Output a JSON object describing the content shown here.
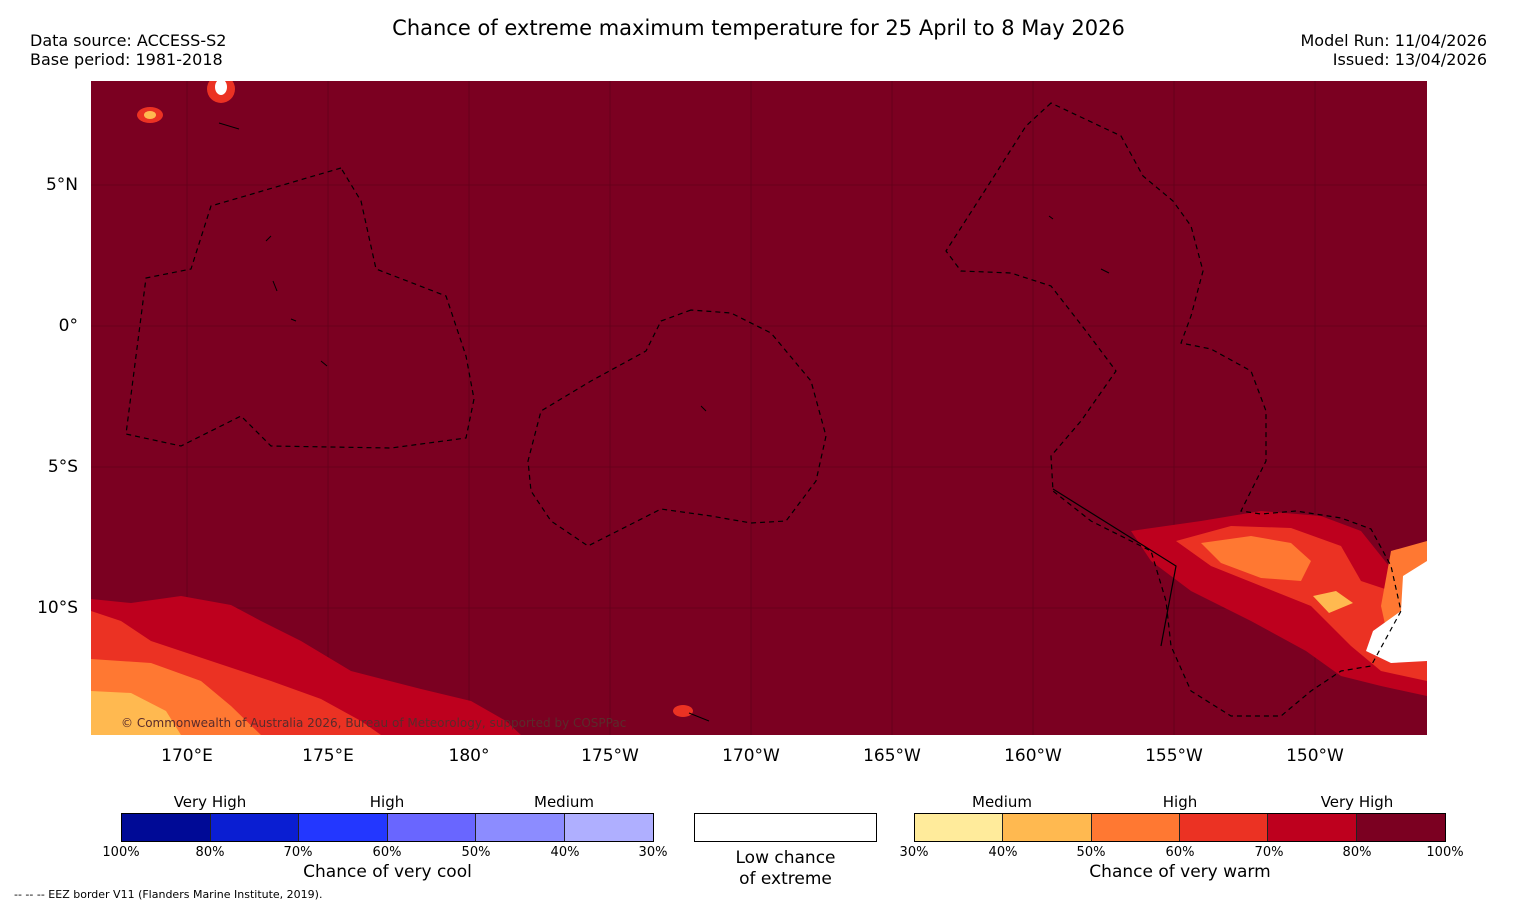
{
  "header": {
    "title": "Chance of extreme maximum temperature for 25 April to 8 May 2026",
    "data_source": "Data source: ACCESS-S2",
    "base_period": "Base period: 1981-2018",
    "model_run": "Model Run: 11/04/2026",
    "issued": "Issued: 13/04/2026"
  },
  "map": {
    "lat_labels": [
      "5°N",
      "0°",
      "5°S",
      "10°S"
    ],
    "lon_labels": [
      "170°E",
      "175°E",
      "180°",
      "175°W",
      "170°W",
      "165°W",
      "160°W",
      "155°W",
      "150°W"
    ],
    "copyright": "© Commonwealth of Australia 2026, Bureau of Meteorology, supported by COSPPac",
    "background_color": "#7b0021"
  },
  "legend": {
    "cool": {
      "categories": [
        "Very High",
        "High",
        "Medium"
      ],
      "ticks": [
        "100%",
        "80%",
        "70%",
        "60%",
        "50%",
        "40%",
        "30%"
      ],
      "colors": [
        "#000a96",
        "#0a1ed2",
        "#2337ff",
        "#6966ff",
        "#8c8cff",
        "#afafff"
      ],
      "caption": "Chance of very cool"
    },
    "neutral": {
      "caption_line1": "Low chance",
      "caption_line2": "of extreme"
    },
    "warm": {
      "categories": [
        "Medium",
        "High",
        "Very High"
      ],
      "ticks": [
        "30%",
        "40%",
        "50%",
        "60%",
        "70%",
        "80%",
        "100%"
      ],
      "colors": [
        "#ffeb9b",
        "#ffb950",
        "#ff7832",
        "#eb3223",
        "#be001e",
        "#7b0021"
      ],
      "caption": "Chance of very warm"
    }
  },
  "footer": {
    "eez_note": "--  --  -- EEZ border V11 (Flanders Marine Institute, 2019)."
  }
}
